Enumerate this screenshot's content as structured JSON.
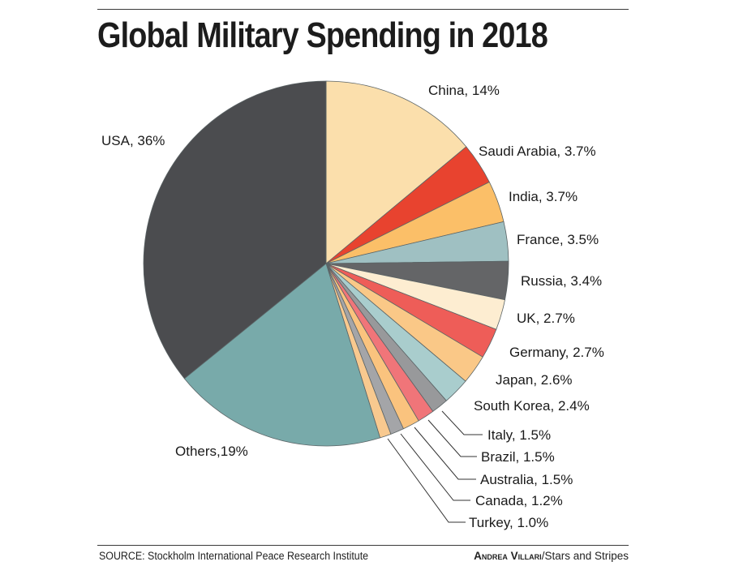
{
  "chart_data": {
    "type": "pie",
    "title": "Global Military Spending in 2018",
    "unit": "% of global military spending",
    "start": "top",
    "direction": "clockwise",
    "slices": [
      {
        "label": "China",
        "value": 14,
        "text": "China, 14%",
        "color": "#fbdfac"
      },
      {
        "label": "Saudi Arabia",
        "value": 3.7,
        "text": "Saudi Arabia, 3.7%",
        "color": "#e8432f"
      },
      {
        "label": "India",
        "value": 3.7,
        "text": "India, 3.7%",
        "color": "#fbbf68"
      },
      {
        "label": "France",
        "value": 3.5,
        "text": "France, 3.5%",
        "color": "#9fc0c2"
      },
      {
        "label": "Russia",
        "value": 3.4,
        "text": "Russia, 3.4%",
        "color": "#646567"
      },
      {
        "label": "UK",
        "value": 2.7,
        "text": "UK, 2.7%",
        "color": "#fdedd1"
      },
      {
        "label": "Germany",
        "value": 2.7,
        "text": "Germany, 2.7%",
        "color": "#ee5d58"
      },
      {
        "label": "Japan",
        "value": 2.6,
        "text": "Japan, 2.6%",
        "color": "#fac887"
      },
      {
        "label": "South Korea",
        "value": 2.4,
        "text": "South Korea, 2.4%",
        "color": "#a9cdcd"
      },
      {
        "label": "Italy",
        "value": 1.5,
        "text": "Italy, 1.5%",
        "color": "#98999b"
      },
      {
        "label": "Brazil",
        "value": 1.5,
        "text": "Brazil, 1.5%",
        "color": "#f07579"
      },
      {
        "label": "Australia",
        "value": 1.5,
        "text": "Australia, 1.5%",
        "color": "#fac37e"
      },
      {
        "label": "Canada",
        "value": 1.2,
        "text": "Canada, 1.2%",
        "color": "#a4a5a8"
      },
      {
        "label": "Turkey",
        "value": 1.0,
        "text": "Turkey, 1.0%",
        "color": "#f8c98f"
      },
      {
        "label": "Others",
        "value": 19,
        "text": "Others,19%",
        "color": "#78aaaa"
      },
      {
        "label": "USA",
        "value": 36,
        "text": "USA, 36%",
        "color": "#4b4c4f"
      }
    ]
  },
  "footer": {
    "source": "SOURCE: Stockholm International Peace Research Institute",
    "credit_name": "Andrea Villari",
    "credit_org": "/Stars and Stripes"
  }
}
